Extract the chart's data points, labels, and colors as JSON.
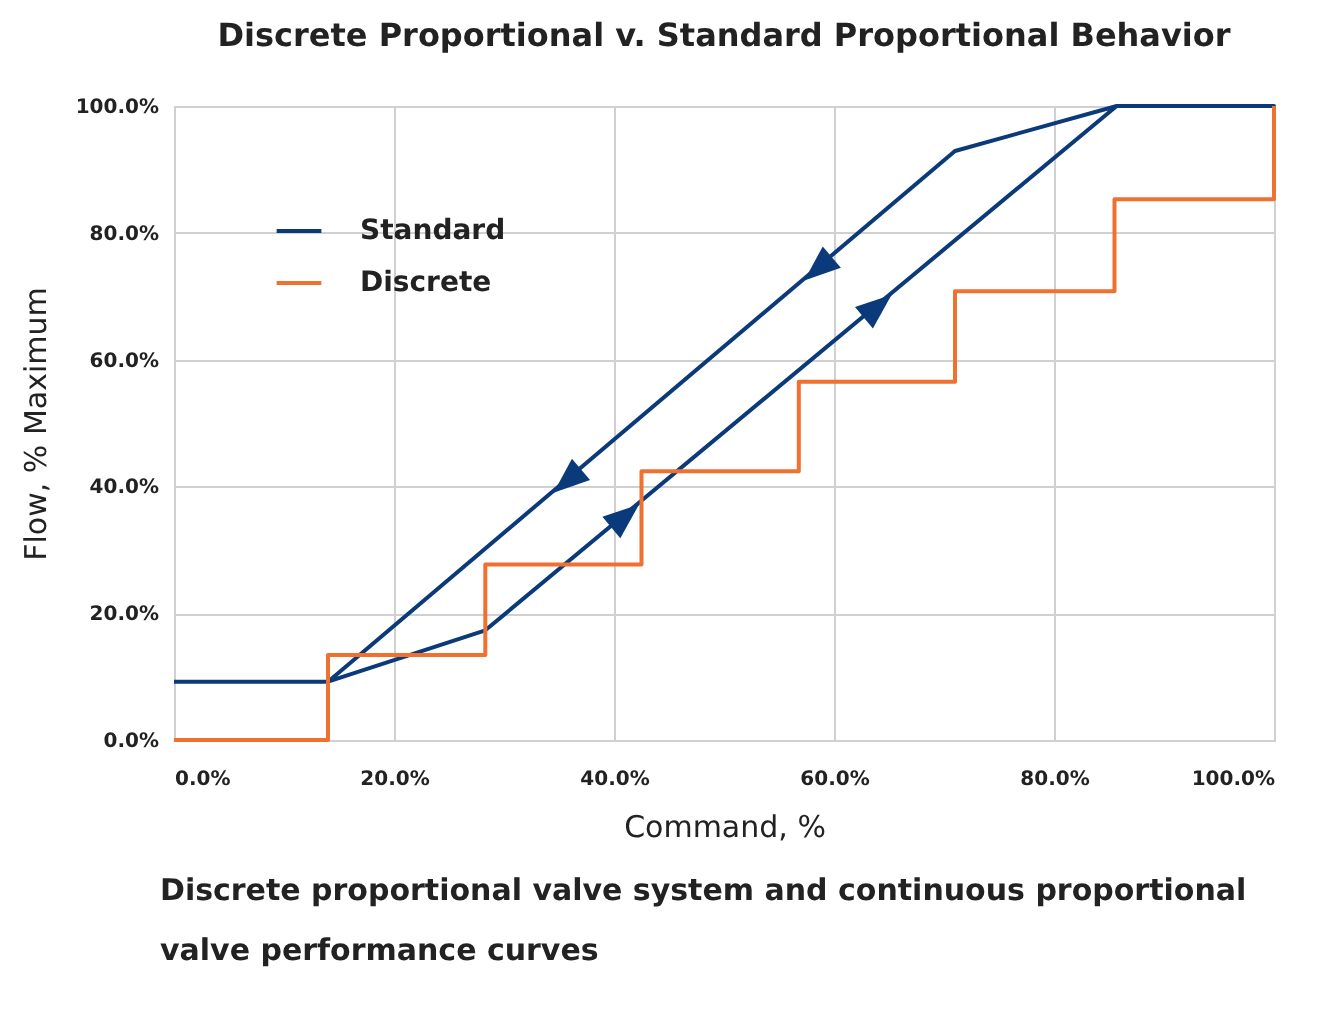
{
  "chart_data": {
    "type": "line",
    "title": "Discrete Proportional v. Standard Proportional Behavior",
    "xlabel": "Command, %",
    "ylabel": "Flow, % Maximum",
    "annotations": [
      "Discrete proportional valve system and continuous proportional valve performance curves"
    ],
    "series": [
      {
        "name": "Standard",
        "type": "line",
        "color": "#0a3a7a",
        "x": [
          0,
          14,
          28.3,
          85.7,
          100,
          85.7,
          71,
          14
        ],
        "values": [
          9.2,
          9.2,
          17.3,
          100,
          100,
          100,
          92.9,
          9.2
        ]
      },
      {
        "name": "Discrete",
        "type": "step",
        "color": "#f07030",
        "x": [
          0,
          14,
          28.3,
          42.5,
          56.8,
          71,
          85.5,
          100
        ],
        "values": [
          0,
          13.4,
          27.7,
          42.4,
          56.5,
          70.8,
          85.3,
          100
        ]
      }
    ],
    "xlim": [
      0,
      100
    ],
    "ylim": [
      0,
      100
    ],
    "xticks": [
      {
        "value": 0,
        "label": "0.0%"
      },
      {
        "value": 20,
        "label": "20.0%"
      },
      {
        "value": 40,
        "label": "40.0%"
      },
      {
        "value": 60,
        "label": "60.0%"
      },
      {
        "value": 80,
        "label": "80.0%"
      },
      {
        "value": 100,
        "label": "100.0%"
      }
    ],
    "yticks": [
      {
        "value": 0,
        "label": "0.0%"
      },
      {
        "value": 20,
        "label": "20.0%"
      },
      {
        "value": 40,
        "label": "40.0%"
      },
      {
        "value": 60,
        "label": "60.0%"
      },
      {
        "value": 80,
        "label": "80.0%"
      },
      {
        "value": 100,
        "label": "100.0%"
      }
    ],
    "grid": true,
    "legend": "top left",
    "marker": "none",
    "line_style": "solid"
  }
}
